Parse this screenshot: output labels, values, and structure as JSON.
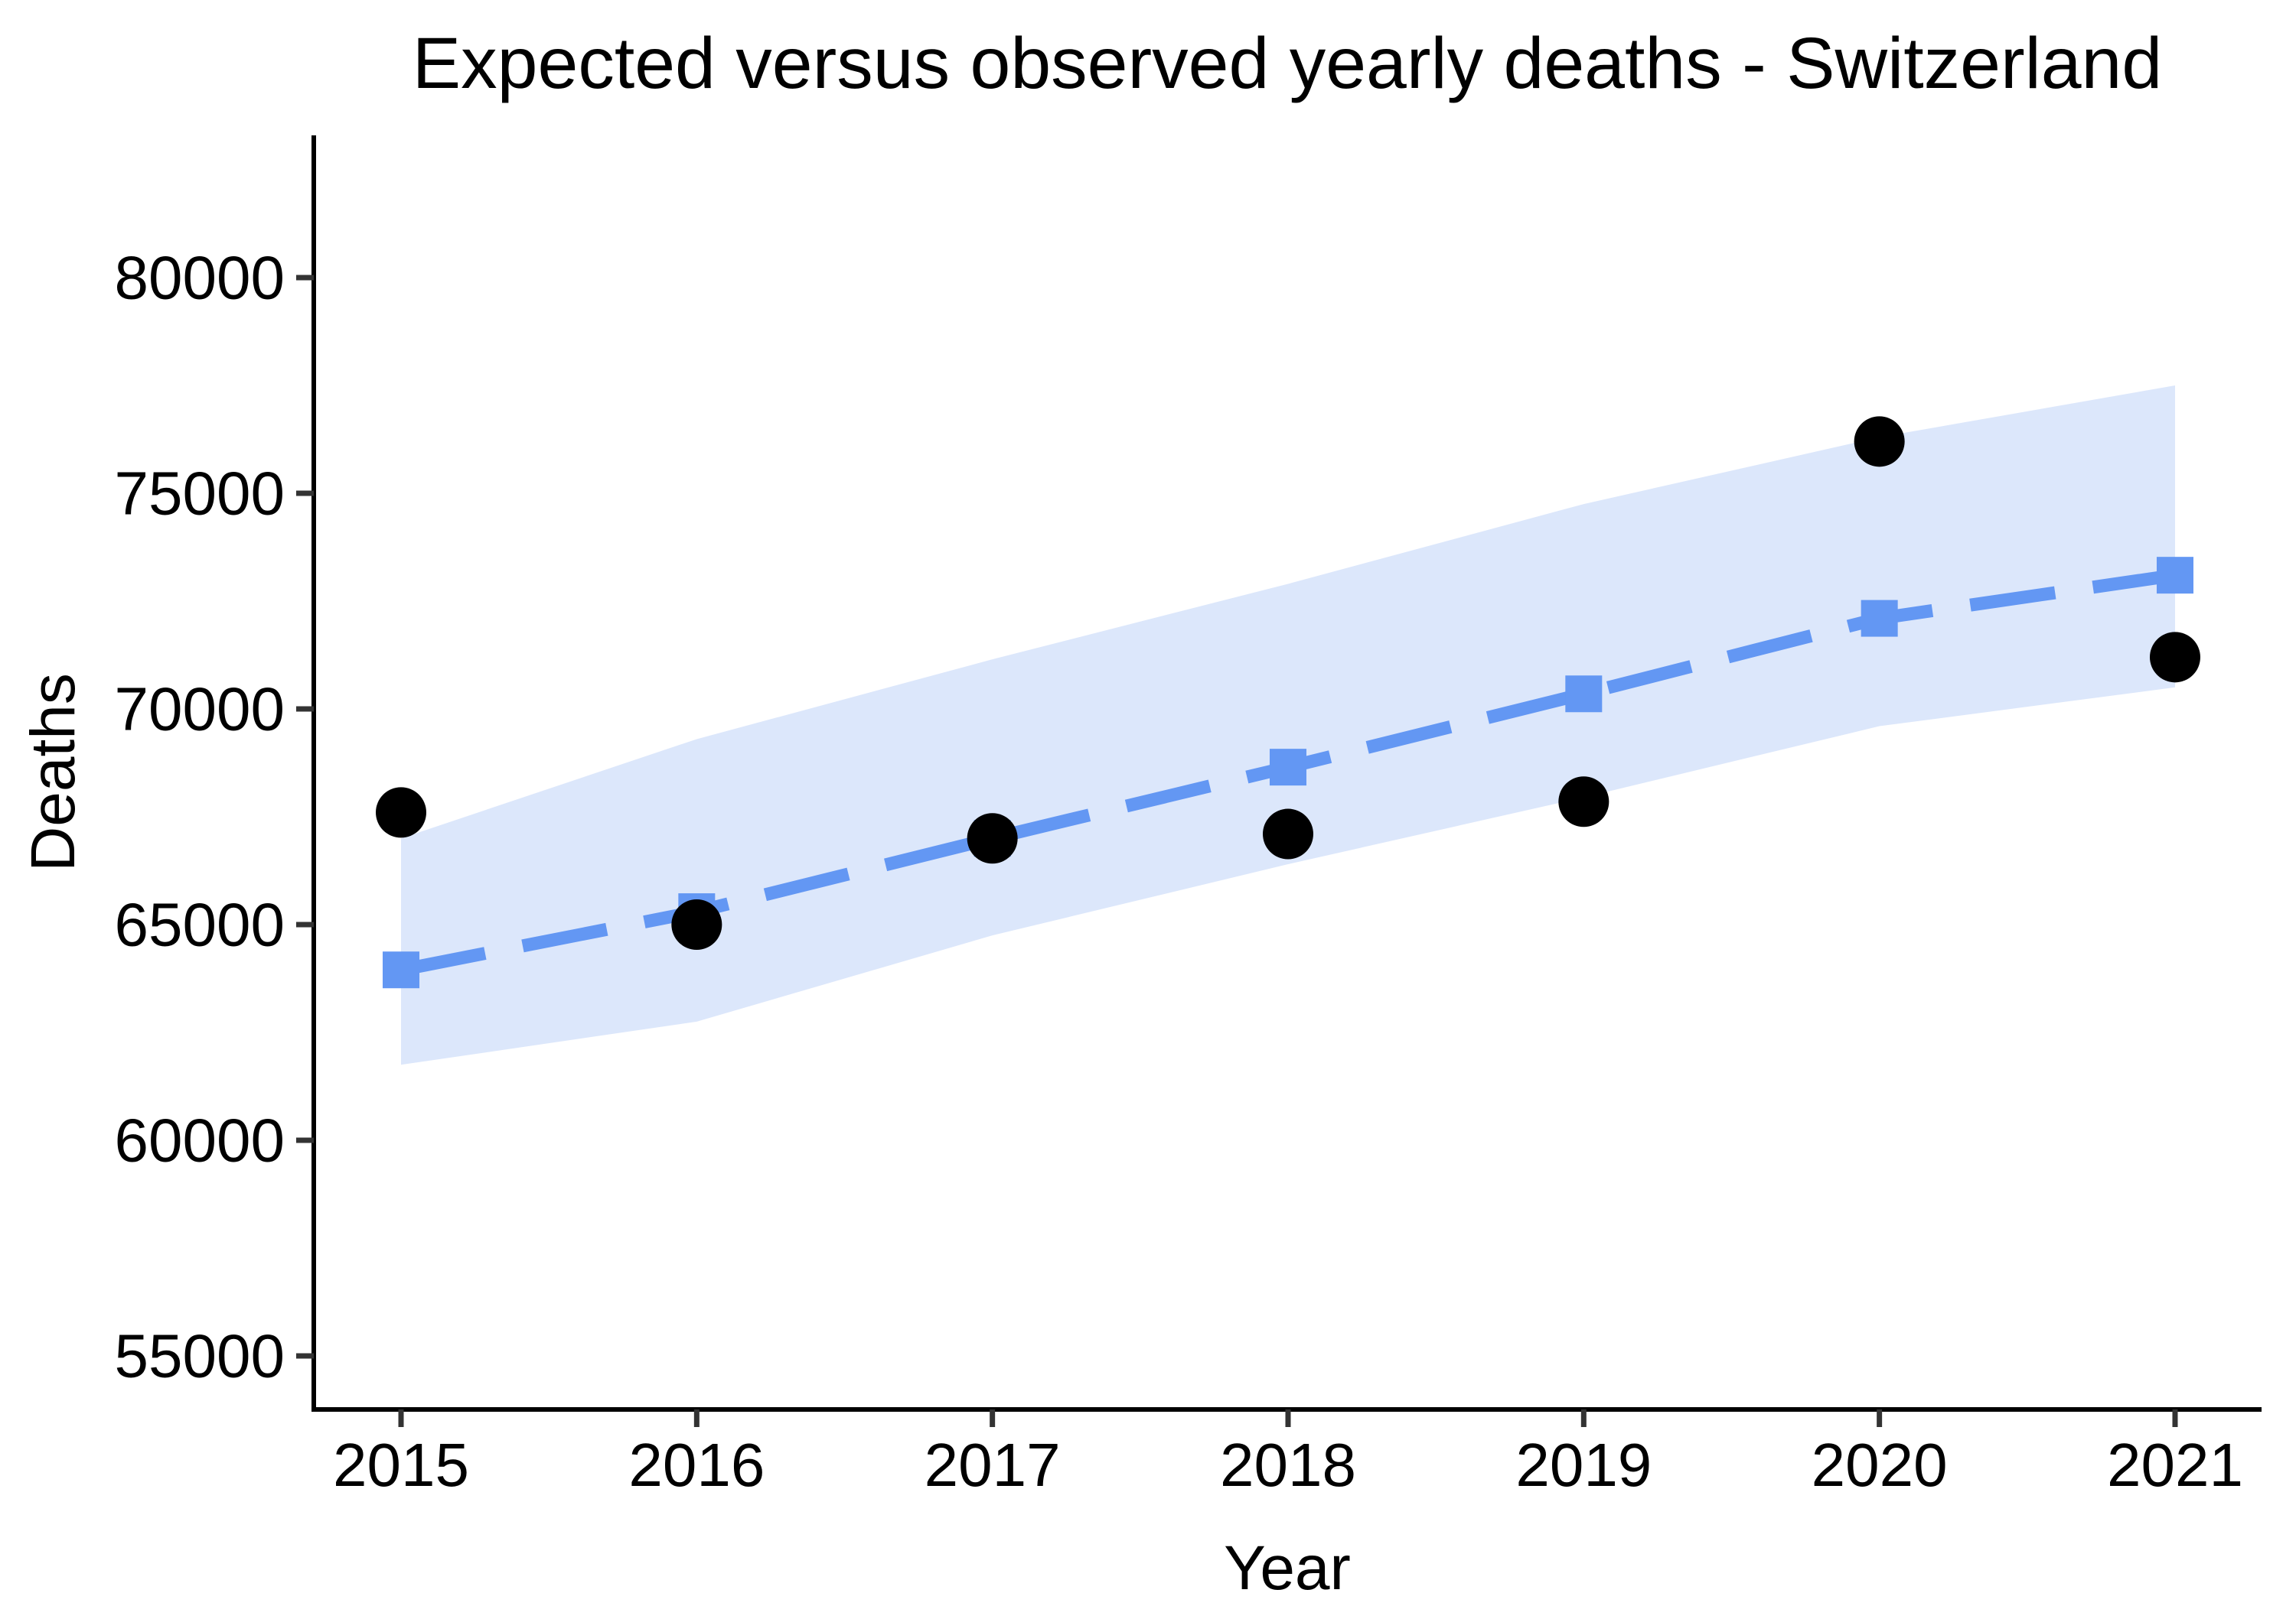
{
  "page": {
    "background": "#FFFFFF"
  },
  "chart_data": {
    "type": "line",
    "title": "Expected versus observed yearly deaths - Switzerland",
    "xlabel": "Year",
    "ylabel": "Deaths",
    "x": [
      2015,
      2016,
      2017,
      2018,
      2019,
      2020,
      2021
    ],
    "xtick_labels": [
      "2015",
      "2016",
      "2017",
      "2018",
      "2019",
      "2020",
      "2021"
    ],
    "yticks": [
      55000,
      60000,
      65000,
      70000,
      75000,
      80000
    ],
    "ytick_labels": [
      "55000",
      "60000",
      "65000",
      "70000",
      "75000",
      "80000"
    ],
    "ylim": [
      53800,
      83300
    ],
    "grid": false,
    "legend": "none",
    "series": [
      {
        "name": "expected",
        "style": "dashed-line-square-markers",
        "color": "#6397F3",
        "values": [
          63950,
          65300,
          67000,
          68650,
          70350,
          72100,
          73100
        ]
      },
      {
        "name": "observed",
        "style": "points",
        "color": "#000000",
        "values": [
          67600,
          65000,
          67000,
          67100,
          67850,
          76200,
          71200
        ]
      }
    ],
    "confidence_band": {
      "name": "expected-uncertainty-band",
      "color": "#DCE7FB",
      "upper": [
        67000,
        69300,
        71150,
        72900,
        74750,
        76300,
        77500
      ],
      "lower": [
        61750,
        62750,
        64750,
        66400,
        67950,
        69600,
        70500
      ]
    }
  },
  "colors": {
    "spine": "#000000",
    "tick_mark": "#333333",
    "tick_label": "#000000"
  }
}
